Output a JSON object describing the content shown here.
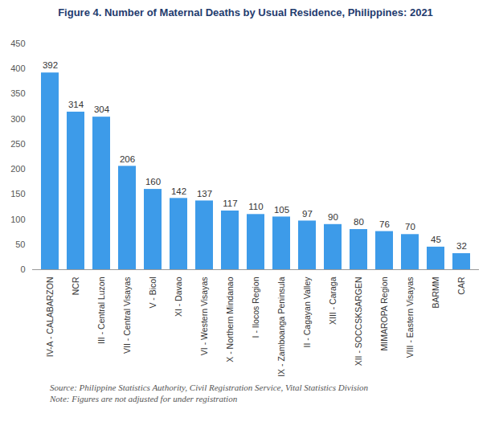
{
  "chart_data": {
    "type": "bar",
    "title": "Figure 4.  Number of Maternal Deaths by Usual Residence, Philippines: 2021",
    "categories": [
      "IV-A - CALABARZON",
      "NCR",
      "III - Central Luzon",
      "VII - Central Visayas",
      "V - Bicol",
      "XI - Davao",
      "VI - Western Visayas",
      "X - Northern Mindanao",
      "I - Ilocos Region",
      "IX - Zamboanga Peninsula",
      "II - Cagayan Valley",
      "XIII - Caraga",
      "XII - SOCCSKSARGEN",
      "MIMAROPA Region",
      "VIII - Eastern Visayas",
      "BARMM",
      "CAR"
    ],
    "values": [
      392,
      314,
      304,
      206,
      160,
      142,
      137,
      117,
      110,
      105,
      97,
      90,
      80,
      76,
      70,
      45,
      32
    ],
    "color": "#3d9be9",
    "ylim": [
      0,
      450
    ],
    "yticks": [
      0,
      50,
      100,
      150,
      200,
      250,
      300,
      350,
      400,
      450
    ],
    "grid": false,
    "data_labels": true,
    "source": "Source: Philippine Statistics Authority, Civil Registration Service, Vital Statistics Division",
    "note": "Note: Figures are not adjusted for under registration"
  }
}
